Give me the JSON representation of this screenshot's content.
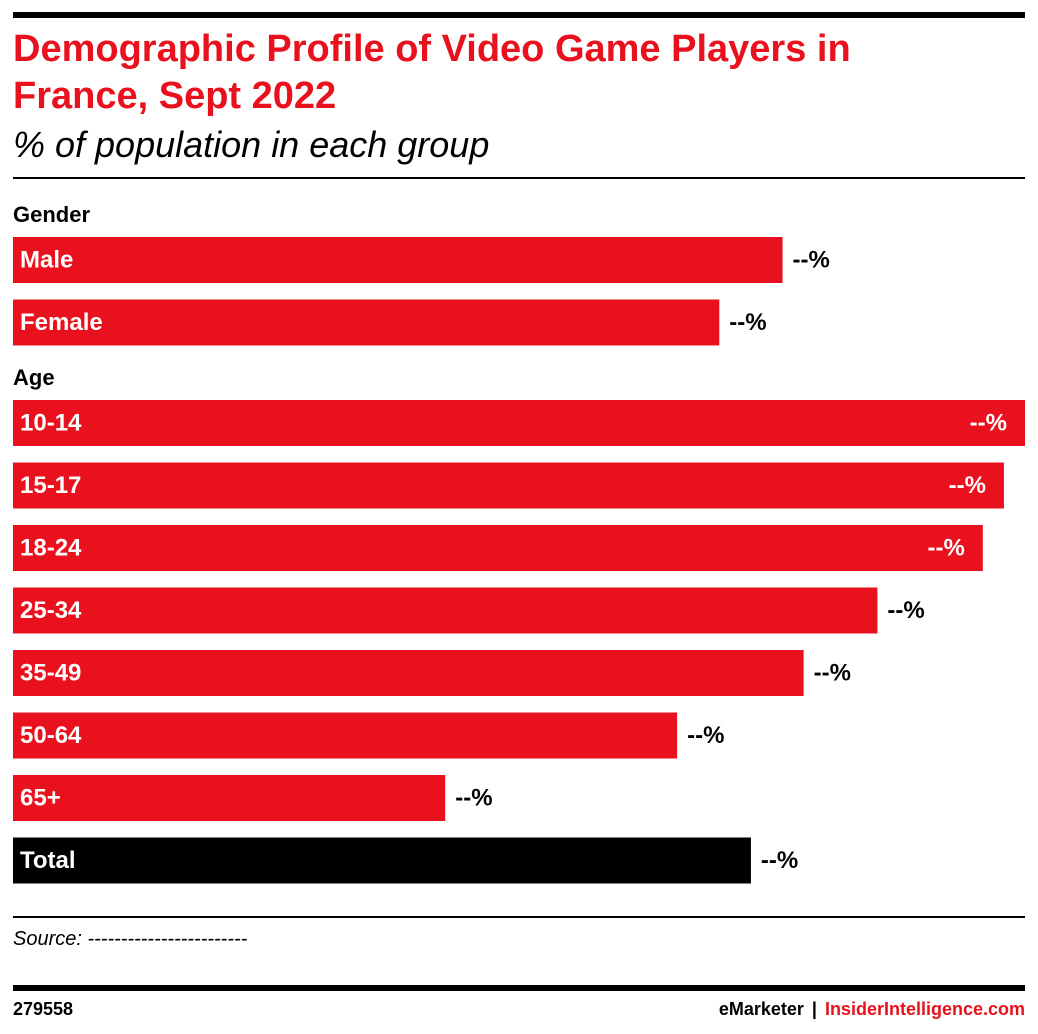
{
  "chart_data": {
    "type": "bar",
    "title": "Demographic Profile of Video Game Players in France, Sept 2022",
    "subtitle": "% of population in each group",
    "groups": [
      {
        "name": "Gender",
        "color": "#e8111d",
        "categories": [
          "Male",
          "Female"
        ],
        "values": [
          73,
          67
        ],
        "value_labels": [
          "--%",
          "--%"
        ]
      },
      {
        "name": "Age",
        "color": "#e8111d",
        "categories": [
          "10-14",
          "15-17",
          "18-24",
          "25-34",
          "35-49",
          "50-64",
          "65+"
        ],
        "values": [
          96,
          94,
          92,
          82,
          75,
          63,
          41
        ],
        "value_labels": [
          "--%",
          "--%",
          "--%",
          "--%",
          "--%",
          "--%",
          "--%"
        ]
      }
    ],
    "total": {
      "category": "Total",
      "value": 70,
      "value_label": "--%",
      "color": "#000000"
    },
    "source": "Source: ------------------------",
    "chart_id": "279558",
    "brands": [
      "eMarketer",
      "|",
      "InsiderIntelligence.com"
    ]
  }
}
